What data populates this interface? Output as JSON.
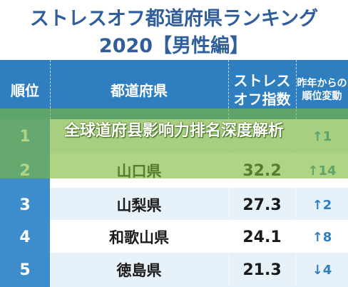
{
  "title": {
    "line1": "ストレスオフ都道府県ランキング",
    "line2": "2020【男性編】"
  },
  "header": {
    "rank": "順位",
    "prefecture": "都道府県",
    "index": "ストレスオフ指数",
    "change": "昨年からの順位変動"
  },
  "rows": [
    {
      "rank": "1",
      "prefecture": "",
      "index": "",
      "change": "↑1"
    },
    {
      "rank": "2",
      "prefecture": "山口県",
      "index": "32.2",
      "change": "↑14"
    },
    {
      "rank": "3",
      "prefecture": "山梨県",
      "index": "27.3",
      "change": "↑2"
    },
    {
      "rank": "4",
      "prefecture": "和歌山県",
      "index": "24.1",
      "change": "↑8"
    },
    {
      "rank": "5",
      "prefecture": "徳島県",
      "index": "21.3",
      "change": "↓4"
    }
  ],
  "overlay": {
    "text": "全球道府县影响力排名深度解析"
  },
  "colors": {
    "header_bg": "#2f7fc0",
    "title_text": "#2f5e9a",
    "overlay": "#7eba38"
  }
}
